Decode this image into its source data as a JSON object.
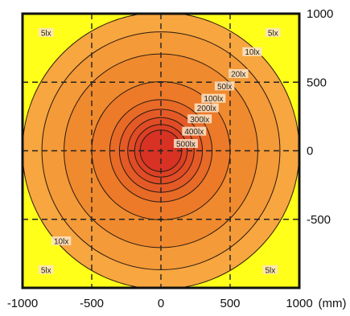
{
  "chart_data": {
    "type": "contour",
    "title": "",
    "unit": "(mm)",
    "xlim": [
      -1000,
      1000
    ],
    "ylim": [
      -1000,
      1000
    ],
    "x_ticks": [
      "-1000",
      "-500",
      "0",
      "500",
      "1000"
    ],
    "y_ticks": [
      "1000",
      "500",
      "0",
      "-500"
    ],
    "grid": true,
    "center": [
      0,
      0
    ],
    "levels": [
      {
        "lux": 5,
        "radius_mm": 1000,
        "color": "#f7a640"
      },
      {
        "lux": 10,
        "radius_mm": 860,
        "color": "#f49a38"
      },
      {
        "lux": 20,
        "radius_mm": 700,
        "color": "#f08a2e"
      },
      {
        "lux": 50,
        "radius_mm": 500,
        "color": "#ec7a29"
      },
      {
        "lux": 100,
        "radius_mm": 370,
        "color": "#e86a27"
      },
      {
        "lux": 200,
        "radius_mm": 300,
        "color": "#e45a26"
      },
      {
        "lux": 300,
        "radius_mm": 240,
        "color": "#e04c25"
      },
      {
        "lux": 400,
        "radius_mm": 190,
        "color": "#dc4024"
      },
      {
        "lux": 500,
        "radius_mm": 150,
        "color": "#d73223"
      }
    ],
    "outside_color": "#ffff1a",
    "labels": [
      {
        "text": "5lx",
        "x": -830,
        "y": 860
      },
      {
        "text": "5lx",
        "x": 810,
        "y": 860
      },
      {
        "text": "10lx",
        "x": 660,
        "y": 720
      },
      {
        "text": "20lx",
        "x": 560,
        "y": 560
      },
      {
        "text": "50lx",
        "x": 460,
        "y": 470
      },
      {
        "text": "100lx",
        "x": 380,
        "y": 380
      },
      {
        "text": "200lx",
        "x": 330,
        "y": 310
      },
      {
        "text": "300lx",
        "x": 280,
        "y": 230
      },
      {
        "text": "400lx",
        "x": 240,
        "y": 140
      },
      {
        "text": "500lx",
        "x": 180,
        "y": 50
      },
      {
        "text": "10lx",
        "x": -720,
        "y": -660
      },
      {
        "text": "5lx",
        "x": -830,
        "y": -870
      },
      {
        "text": "5lx",
        "x": 790,
        "y": -870
      }
    ]
  }
}
